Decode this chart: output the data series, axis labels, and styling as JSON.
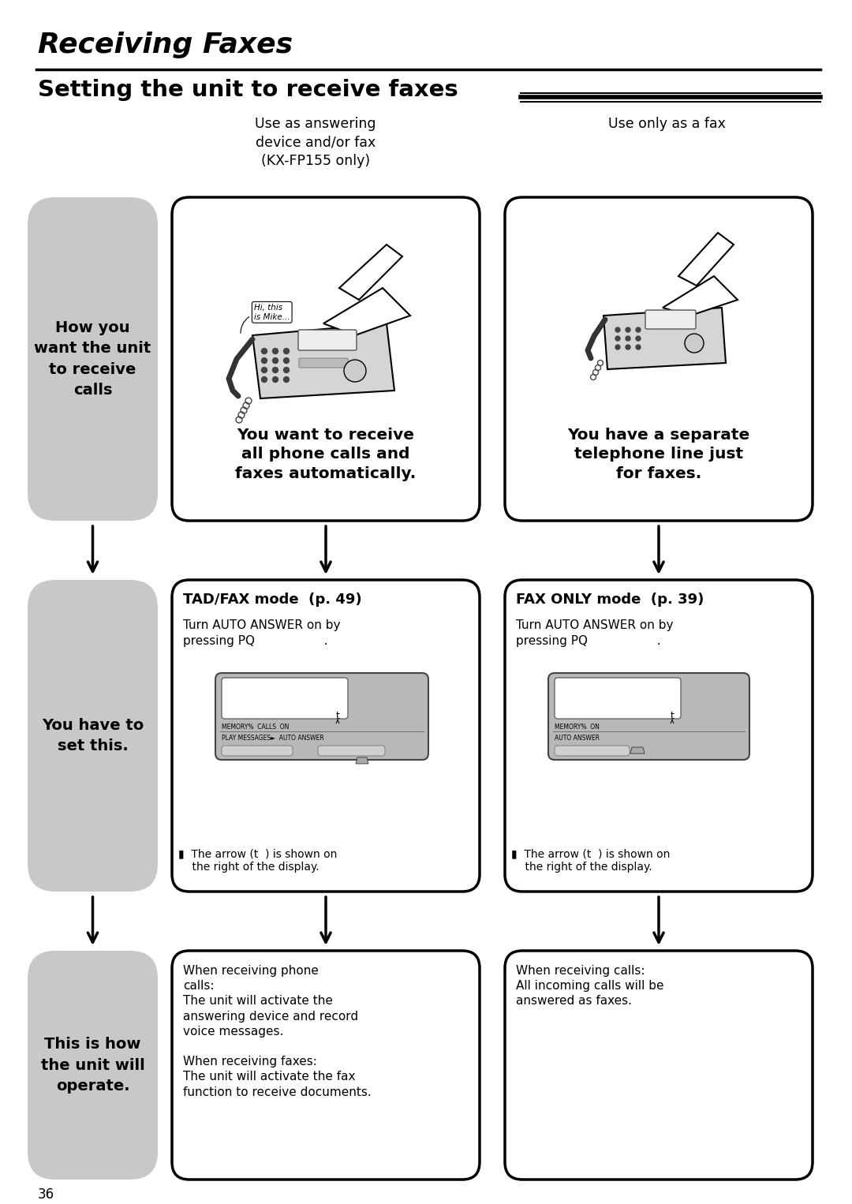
{
  "page_bg": "#ffffff",
  "title_italic": "Receiving Faxes",
  "subtitle": "Setting the unit to receive faxes",
  "page_number": "36",
  "col2_header": "Use as answering\ndevice and/or fax\n(KX-FP155 only)",
  "col3_header": "Use only as a fax",
  "row1_col1_text": "How you\nwant the unit\nto receive\ncalls",
  "row1_col2_text": "You want to receive\nall phone calls and\nfaxes automatically.",
  "row1_col3_text": "You have a separate\ntelephone line just\nfor faxes.",
  "row2_col1_text": "You have to\nset this.",
  "row2_col2_title": "TAD/FAX mode  (p. 49)",
  "row2_col2_body": "Turn AUTO ANSWER on by\npressing PQ                  .",
  "row2_col2_caption": "▮  The arrow (t  ) is shown on\n    the right of the display.",
  "row2_col3_title": "FAX ONLY mode  (p. 39)",
  "row2_col3_body": "Turn AUTO ANSWER on by\npressing PQ                  .",
  "row2_col3_caption": "▮  The arrow (t  ) is shown on\n    the right of the display.",
  "row3_col1_text": "This is how\nthe unit will\noperate.",
  "row3_col2_text": "When receiving phone\ncalls:\nThe unit will activate the\nanswering device and record\nvoice messages.\n\nWhen receiving faxes:\nThe unit will activate the fax\nfunction to receive documents.",
  "row3_col3_text": "When receiving calls:\nAll incoming calls will be\nanswered as faxes.",
  "gray_bg": "#c8c8c8",
  "box_border": "#000000"
}
